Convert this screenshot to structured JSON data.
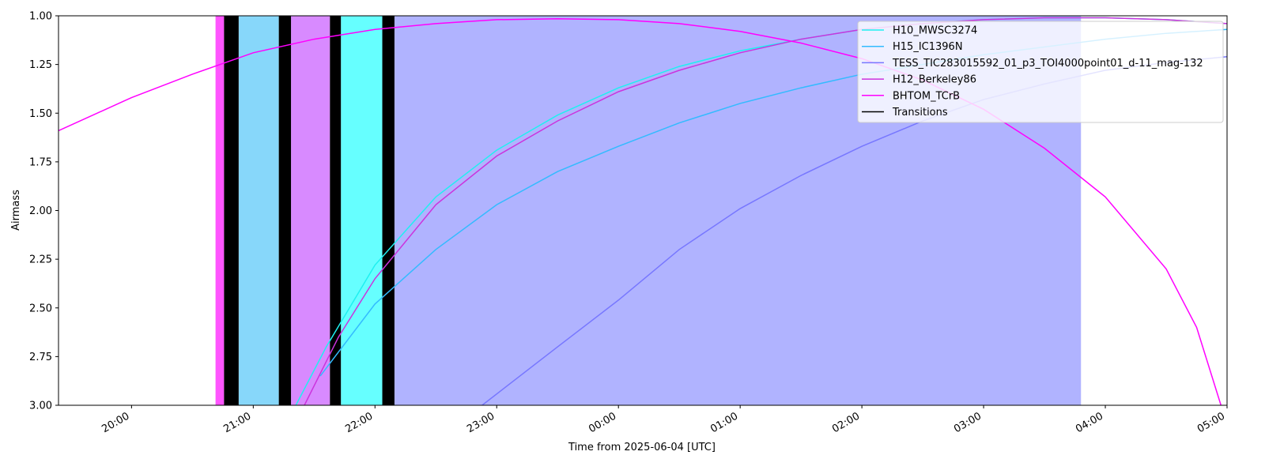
{
  "chart_data": {
    "type": "line",
    "xlabel": "Time from 2025-06-04 [UTC]",
    "ylabel": "Airmass",
    "xlim": [
      19.4,
      29
    ],
    "ylim": [
      3,
      1
    ],
    "xticks": [
      {
        "value": 20,
        "label": "20:00"
      },
      {
        "value": 21,
        "label": "21:00"
      },
      {
        "value": 22,
        "label": "22:00"
      },
      {
        "value": 23,
        "label": "23:00"
      },
      {
        "value": 24,
        "label": "00:00"
      },
      {
        "value": 25,
        "label": "01:00"
      },
      {
        "value": 26,
        "label": "02:00"
      },
      {
        "value": 27,
        "label": "03:00"
      },
      {
        "value": 28,
        "label": "04:00"
      },
      {
        "value": 29,
        "label": "05:00"
      }
    ],
    "yticks": [
      {
        "value": 1,
        "label": "1.00"
      },
      {
        "value": 1.25,
        "label": "1.25"
      },
      {
        "value": 1.5,
        "label": "1.50"
      },
      {
        "value": 1.75,
        "label": "1.75"
      },
      {
        "value": 2,
        "label": "2.00"
      },
      {
        "value": 2.25,
        "label": "2.25"
      },
      {
        "value": 2.5,
        "label": "2.50"
      },
      {
        "value": 2.75,
        "label": "2.75"
      },
      {
        "value": 3,
        "label": "3.00"
      }
    ],
    "legend": "upper right",
    "blocks": [
      {
        "start": 20.69,
        "end": 20.76,
        "color": "#ff55ff"
      },
      {
        "start": 20.88,
        "end": 21.21,
        "color": "#87d7fa"
      },
      {
        "start": 21.31,
        "end": 21.63,
        "color": "#d88aff"
      },
      {
        "start": 21.72,
        "end": 22.06,
        "color": "#66ffff"
      },
      {
        "start": 22.16,
        "end": 27.8,
        "color": "#b0b3ff"
      }
    ],
    "transitions": {
      "name": "Transitions",
      "color": "#000000",
      "spans": [
        [
          20.76,
          20.88
        ],
        [
          21.21,
          21.31
        ],
        [
          21.63,
          21.72
        ],
        [
          22.06,
          22.16
        ]
      ]
    },
    "series": [
      {
        "name": "H10_MWSC3274",
        "color": "#1ff0f0",
        "x": [
          21.35,
          21.6,
          22,
          22.5,
          23,
          23.5,
          24,
          24.5,
          25,
          25.5,
          26,
          26.5,
          27,
          27.5,
          28,
          28.5,
          29
        ],
        "values": [
          3.0,
          2.7,
          2.28,
          1.93,
          1.69,
          1.51,
          1.37,
          1.26,
          1.18,
          1.12,
          1.07,
          1.04,
          1.02,
          1.01,
          1.01,
          1.02,
          1.04
        ]
      },
      {
        "name": "H15_IC1396N",
        "color": "#33bbff",
        "x": [
          21.55,
          22,
          22.5,
          23,
          23.5,
          24,
          24.5,
          25,
          25.5,
          26,
          26.5,
          27,
          27.5,
          28,
          28.5,
          29
        ],
        "values": [
          2.85,
          2.48,
          2.2,
          1.97,
          1.8,
          1.67,
          1.55,
          1.45,
          1.37,
          1.3,
          1.25,
          1.2,
          1.16,
          1.12,
          1.09,
          1.07
        ]
      },
      {
        "name": "TESS_TIC283015592_01_p3_TOI4000point01_d-11_mag-132",
        "color": "#7777ff",
        "x": [
          22.88,
          23.5,
          24,
          24.5,
          25,
          25.5,
          26,
          26.5,
          27,
          27.5,
          28,
          28.5,
          29
        ],
        "values": [
          3.0,
          2.7,
          2.46,
          2.2,
          1.99,
          1.82,
          1.67,
          1.54,
          1.43,
          1.35,
          1.28,
          1.24,
          1.21
        ]
      },
      {
        "name": "H12_Berkeley86",
        "color": "#cc33dd",
        "x": [
          21.42,
          21.7,
          22,
          22.5,
          23,
          23.5,
          24,
          24.5,
          25,
          25.5,
          26,
          26.5,
          27,
          27.5,
          28,
          28.5,
          29
        ],
        "values": [
          3.0,
          2.65,
          2.35,
          1.97,
          1.72,
          1.54,
          1.39,
          1.28,
          1.19,
          1.12,
          1.07,
          1.04,
          1.02,
          1.01,
          1.01,
          1.02,
          1.04
        ]
      },
      {
        "name": "BHTOM_TCrB",
        "color": "#ff00ff",
        "x": [
          19.4,
          20,
          20.5,
          21,
          21.5,
          22,
          22.5,
          23,
          23.5,
          24,
          24.5,
          25,
          25.5,
          26,
          26.5,
          27,
          27.5,
          28,
          28.5,
          28.75,
          28.95
        ],
        "values": [
          1.59,
          1.42,
          1.3,
          1.19,
          1.12,
          1.07,
          1.04,
          1.02,
          1.015,
          1.02,
          1.04,
          1.08,
          1.14,
          1.22,
          1.33,
          1.48,
          1.68,
          1.93,
          2.3,
          2.6,
          3.0
        ]
      }
    ]
  }
}
